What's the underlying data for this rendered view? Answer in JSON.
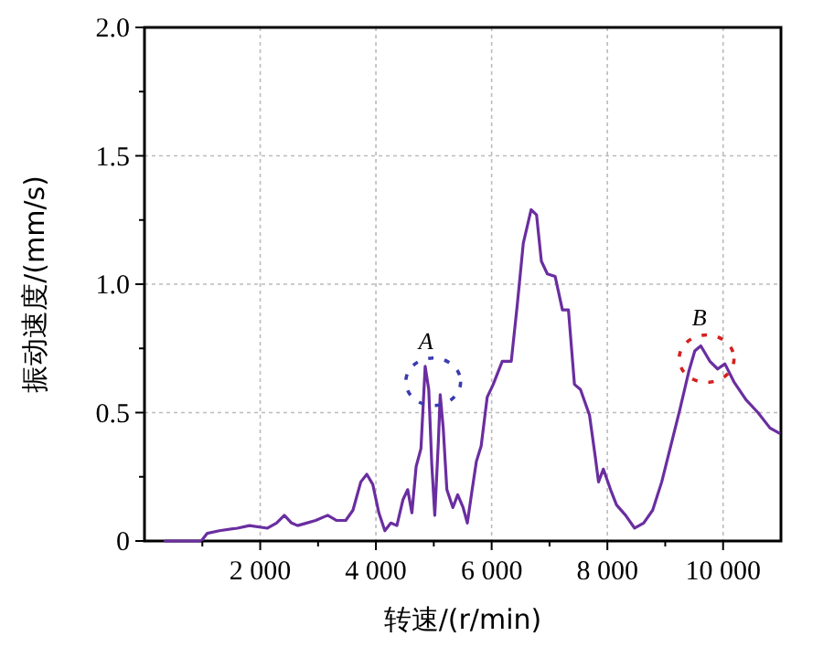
{
  "chart_data": {
    "type": "line",
    "xlabel": "转速/(r/min)",
    "ylabel": "振动速度/(mm/s)",
    "xlim": [
      0,
      11000
    ],
    "ylim": [
      0,
      2.0
    ],
    "xticks": [
      {
        "value": 1000,
        "label": null
      },
      {
        "value": 2000,
        "label": "2 000"
      },
      {
        "value": 3000,
        "label": null
      },
      {
        "value": 4000,
        "label": "4 000"
      },
      {
        "value": 5000,
        "label": null
      },
      {
        "value": 6000,
        "label": "6 000"
      },
      {
        "value": 7000,
        "label": null
      },
      {
        "value": 8000,
        "label": "8 000"
      },
      {
        "value": 9000,
        "label": null
      },
      {
        "value": 10000,
        "label": "10 000"
      }
    ],
    "yticks": [
      0,
      {
        "value": 0.25,
        "label": null
      },
      0.5,
      {
        "value": 0.75,
        "label": null
      },
      {
        "value": 1.0,
        "label": "1.0"
      },
      {
        "value": 1.25,
        "label": null
      },
      1.5,
      {
        "value": 1.75,
        "label": null
      },
      {
        "value": 2.0,
        "label": "2.0"
      }
    ],
    "grid": true,
    "line_style": "solid",
    "marker": "none",
    "annotations": [
      {
        "text": "A",
        "x": 4990,
        "y": 0.62
      },
      {
        "text": "B",
        "x": 9715,
        "y": 0.71
      }
    ],
    "series": [
      {
        "color": "#6a2ea0",
        "x": [
          357,
          981,
          1085,
          1294,
          1606,
          1814,
          2126,
          2282,
          2417,
          2542,
          2646,
          2802,
          2958,
          3166,
          3322,
          3478,
          3603,
          3738,
          3842,
          3946,
          4050,
          4154,
          4258,
          4362,
          4466,
          4549,
          4622,
          4695,
          4778,
          4851,
          4913,
          4965,
          5017,
          5080,
          5111,
          5163,
          5226,
          5330,
          5413,
          5507,
          5580,
          5663,
          5736,
          5819,
          5923,
          6027,
          6183,
          6339,
          6443,
          6547,
          6682,
          6776,
          6859,
          6963,
          7098,
          7223,
          7327,
          7431,
          7535,
          7691,
          7795,
          7847,
          7930,
          8055,
          8159,
          8315,
          8471,
          8627,
          8783,
          8939,
          9095,
          9251,
          9407,
          9511,
          9615,
          9771,
          9906,
          10031,
          10187,
          10395,
          10603,
          10811,
          10967
        ],
        "values": [
          0,
          0,
          0.03,
          0.04,
          0.05,
          0.06,
          0.05,
          0.07,
          0.1,
          0.07,
          0.06,
          0.07,
          0.08,
          0.1,
          0.08,
          0.08,
          0.12,
          0.23,
          0.26,
          0.22,
          0.11,
          0.04,
          0.07,
          0.06,
          0.16,
          0.2,
          0.11,
          0.29,
          0.36,
          0.68,
          0.59,
          0.3,
          0.1,
          0.39,
          0.57,
          0.44,
          0.2,
          0.13,
          0.18,
          0.13,
          0.07,
          0.2,
          0.31,
          0.37,
          0.56,
          0.61,
          0.7,
          0.7,
          0.92,
          1.16,
          1.29,
          1.27,
          1.09,
          1.04,
          1.03,
          0.9,
          0.9,
          0.61,
          0.59,
          0.49,
          0.32,
          0.23,
          0.28,
          0.2,
          0.14,
          0.1,
          0.05,
          0.07,
          0.12,
          0.23,
          0.37,
          0.51,
          0.66,
          0.74,
          0.76,
          0.7,
          0.67,
          0.69,
          0.62,
          0.55,
          0.5,
          0.44,
          0.42
        ]
      }
    ]
  }
}
